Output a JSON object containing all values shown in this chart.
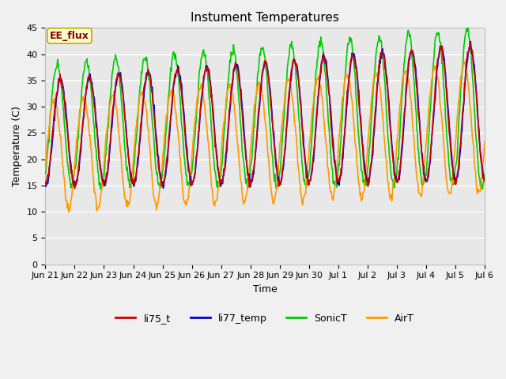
{
  "title": "Instument Temperatures",
  "xlabel": "Time",
  "ylabel": "Temperature (C)",
  "ylim": [
    0,
    45
  ],
  "yticks": [
    0,
    5,
    10,
    15,
    20,
    25,
    30,
    35,
    40,
    45
  ],
  "fig_bg_color": "#f0f0f0",
  "plot_bg": "#e8e8e8",
  "annotation_text": "EE_flux",
  "annotation_bg": "#ffffcc",
  "annotation_border": "#bbaa00",
  "annotation_text_color": "#880000",
  "colors": {
    "li75_t": "#cc0000",
    "li77_temp": "#0000cc",
    "SonicT": "#00cc00",
    "AirT": "#ff9900"
  },
  "xtick_labels": [
    "Jun 21",
    "Jun 22",
    "Jun 23",
    "Jun 24",
    "Jun 25",
    "Jun 26",
    "Jun 27",
    "Jun 28",
    "Jun 29",
    "Jun 30",
    "Jul 1",
    "Jul 2",
    "Jul 3",
    "Jul 4",
    "Jul 5",
    "Jul 6"
  ],
  "num_days": 16,
  "title_fontsize": 11,
  "axis_fontsize": 9,
  "tick_fontsize": 8,
  "legend_fontsize": 9,
  "line_width": 1.2
}
